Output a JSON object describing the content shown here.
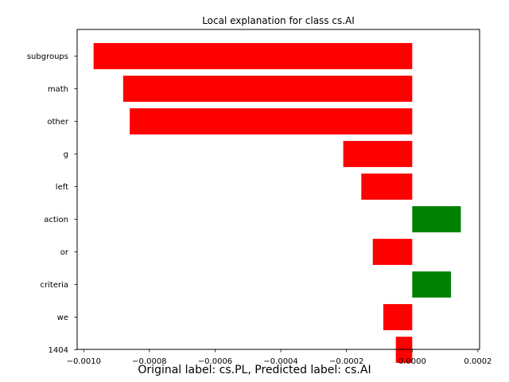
{
  "chart_data": {
    "type": "bar",
    "orientation": "horizontal",
    "title": "Local explanation for class cs.AI",
    "categories": [
      "subgroups",
      "math",
      "other",
      "g",
      "left",
      "action",
      "or",
      "criteria",
      "we",
      "1404"
    ],
    "values": [
      -0.00097,
      -0.00088,
      -0.00086,
      -0.00021,
      -0.000155,
      0.000148,
      -0.00012,
      0.000118,
      -8.8e-05,
      -5e-05
    ],
    "xlim": [
      -0.00102,
      0.000205
    ],
    "xticks": [
      -0.001,
      -0.0008,
      -0.0006,
      -0.0004,
      -0.0002,
      0.0,
      0.0002
    ],
    "xtick_labels": [
      "−0.0010",
      "−0.0008",
      "−0.0006",
      "−0.0004",
      "−0.0002",
      "0.0000",
      "0.0002"
    ],
    "colors": {
      "positive": "#008000",
      "negative": "#ff0000"
    },
    "grid": false,
    "xlabel": "",
    "ylabel": ""
  },
  "caption": "Original label: cs.PL, Predicted label: cs.AI"
}
